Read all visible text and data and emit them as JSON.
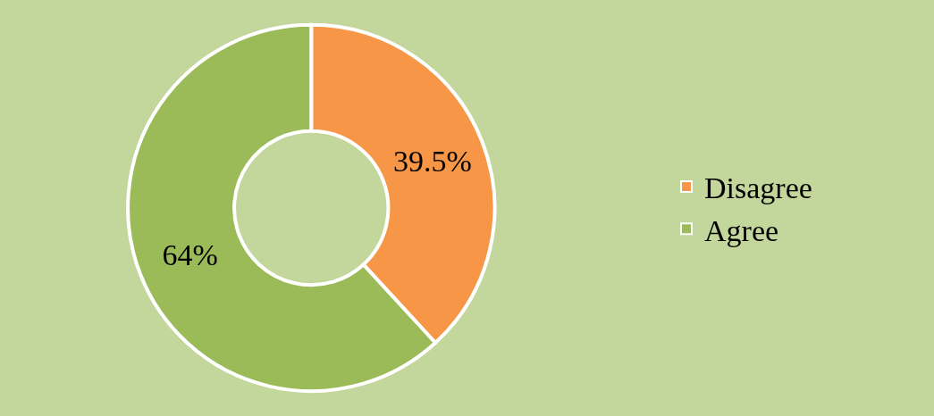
{
  "chart_data": {
    "type": "donut",
    "categories": [
      "Disagree",
      "Agree"
    ],
    "values": [
      39.5,
      64
    ],
    "value_labels": [
      "39.5%",
      "64%"
    ],
    "colors": [
      "#f79646",
      "#9bbb59"
    ],
    "legend": "right"
  }
}
